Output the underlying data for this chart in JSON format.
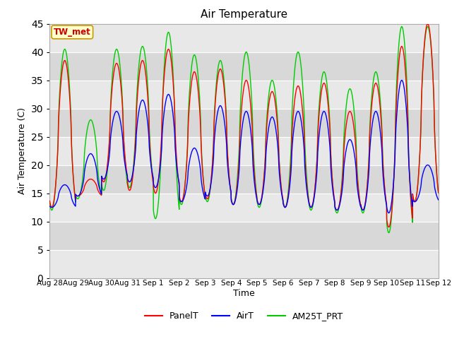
{
  "title": "Air Temperature",
  "xlabel": "Time",
  "ylabel": "Air Temperature (C)",
  "ylim": [
    0,
    45
  ],
  "yticks": [
    0,
    5,
    10,
    15,
    20,
    25,
    30,
    35,
    40,
    45
  ],
  "annotation_text": "TW_met",
  "annotation_color": "#cc0000",
  "annotation_bg": "#ffffcc",
  "annotation_border": "#cc9900",
  "fig_bg": "#ffffff",
  "plot_bg_light": "#e8e8e8",
  "plot_bg_dark": "#d0d0d0",
  "grid_color": "white",
  "legend_entries": [
    "PanelT",
    "AirT",
    "AM25T_PRT"
  ],
  "legend_colors": [
    "red",
    "blue",
    "#00cc00"
  ],
  "num_days": 15,
  "xtick_labels": [
    "Aug 28",
    "Aug 29",
    "Aug 30",
    "Aug 31",
    "Sep 1",
    "Sep 2",
    "Sep 3",
    "Sep 4",
    "Sep 5",
    "Sep 6",
    "Sep 7",
    "Sep 8",
    "Sep 9",
    "Sep 10",
    "Sep 11",
    "Sep 12"
  ],
  "panel_peaks": [
    38.5,
    17.5,
    38.0,
    38.5,
    40.5,
    36.5,
    37.0,
    35.0,
    33.0,
    34.0,
    34.5,
    29.5,
    34.5,
    41.0,
    45.0
  ],
  "panel_mins": [
    12.5,
    14.5,
    17.0,
    15.5,
    15.0,
    13.5,
    14.0,
    13.0,
    13.0,
    12.5,
    12.5,
    12.0,
    12.0,
    9.0,
    13.5
  ],
  "air_peaks": [
    16.5,
    22.0,
    29.5,
    31.5,
    32.5,
    23.0,
    30.5,
    29.5,
    28.5,
    29.5,
    29.5,
    24.5,
    29.5,
    35.0,
    20.0
  ],
  "air_mins": [
    12.5,
    14.5,
    17.5,
    17.0,
    16.0,
    13.5,
    14.5,
    13.0,
    13.0,
    12.5,
    12.5,
    12.0,
    12.0,
    11.5,
    13.5
  ],
  "am25_peaks": [
    40.5,
    28.0,
    40.5,
    41.0,
    43.5,
    39.5,
    38.5,
    40.0,
    35.0,
    40.0,
    36.5,
    33.5,
    36.5,
    44.5,
    44.5
  ],
  "am25_mins": [
    12.0,
    14.0,
    15.5,
    16.0,
    10.5,
    13.0,
    13.5,
    13.0,
    12.5,
    12.5,
    12.0,
    11.5,
    11.5,
    8.0,
    13.5
  ],
  "band_colors": [
    "#e8e8e8",
    "#d8d8d8"
  ],
  "band_edges": [
    0,
    5,
    10,
    15,
    20,
    25,
    30,
    35,
    40,
    45
  ]
}
